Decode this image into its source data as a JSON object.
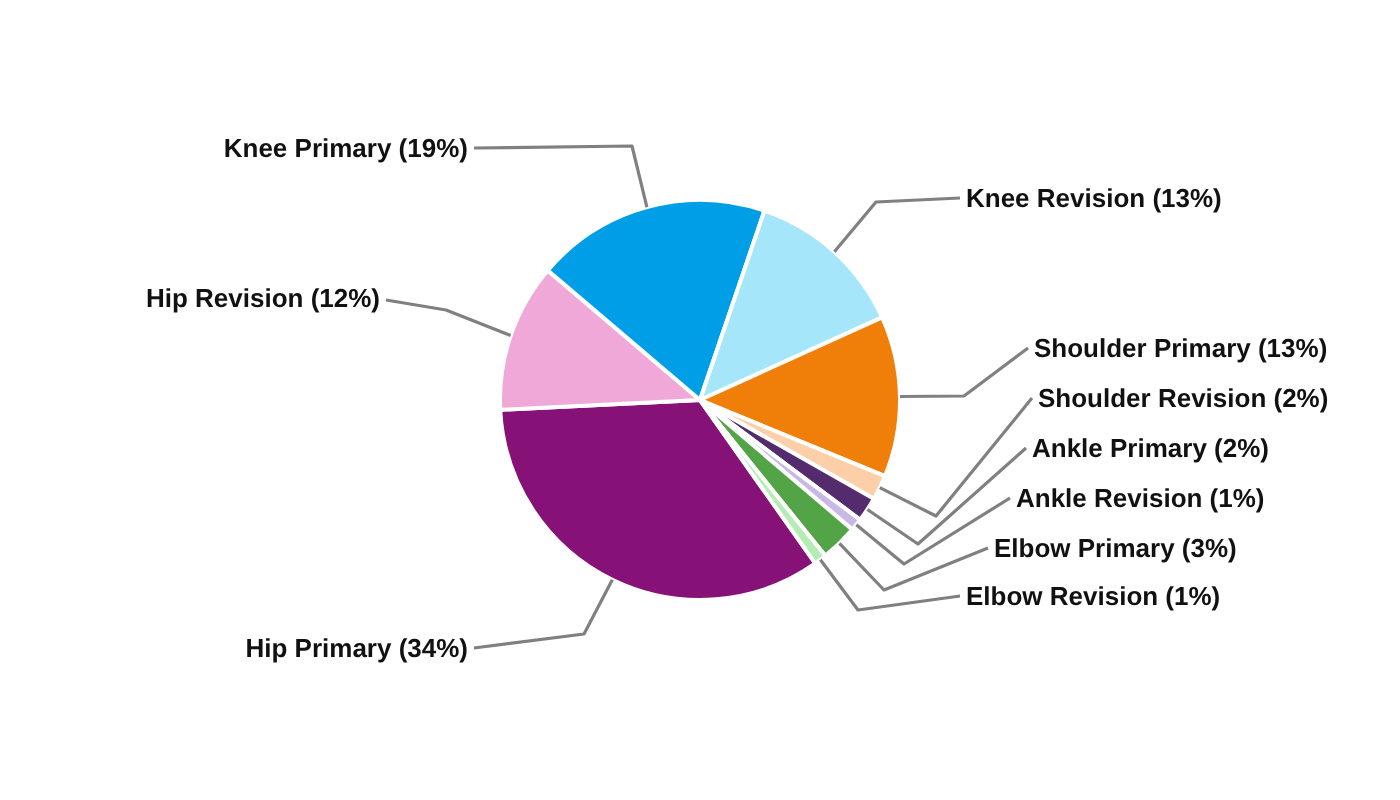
{
  "chart_data": {
    "type": "pie",
    "categories": [
      "Hip Primary",
      "Hip Revision",
      "Knee Primary",
      "Knee Revision",
      "Shoulder Primary",
      "Shoulder Revision",
      "Ankle Primary",
      "Ankle Revision",
      "Elbow Primary",
      "Elbow Revision"
    ],
    "values": [
      34,
      12,
      19,
      13,
      13,
      2,
      2,
      1,
      3,
      1
    ],
    "colors": [
      "#861177",
      "#f0a8d8",
      "#009ee6",
      "#a6e6fa",
      "#f07f0a",
      "#fdcfa8",
      "#542c6e",
      "#c8b8e8",
      "#52a447",
      "#b4ecb4"
    ],
    "value_labels": [
      "(34%)",
      "(12%)",
      "(19%)",
      "(13%)",
      "(13%)",
      "(2%)",
      "(2%)",
      "(1%)",
      "(3%)",
      "(1%)"
    ]
  }
}
